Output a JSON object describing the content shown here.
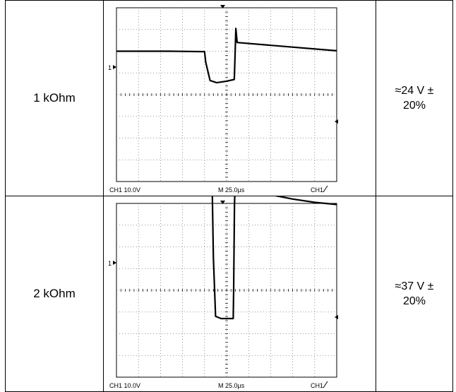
{
  "rows": [
    {
      "resistance": "1 kOhm",
      "value_line1": "≈24 V ±",
      "value_line2": "20%",
      "scope": {
        "channel_scale": "CH1  10.0V",
        "timebase": "M 25.0µs",
        "trigger": "CH1",
        "ch_marker": "1",
        "waveform": [
          [
            0,
            2.0
          ],
          [
            2.4,
            2.0
          ],
          [
            4.0,
            1.98
          ],
          [
            4.05,
            1.5
          ],
          [
            4.25,
            0.65
          ],
          [
            4.55,
            0.55
          ],
          [
            5.0,
            0.62
          ],
          [
            5.35,
            0.7
          ],
          [
            5.38,
            1.7
          ],
          [
            5.42,
            3.05
          ],
          [
            5.48,
            2.4
          ],
          [
            10.0,
            2.02
          ]
        ]
      }
    },
    {
      "resistance": "2 kOhm",
      "value_line1": "≈37 V ±",
      "value_line2": "20%",
      "scope": {
        "channel_scale": "CH1  10.0V",
        "timebase": "M 25.0µs",
        "trigger": "CH1",
        "ch_marker": "1",
        "waveform": [
          [
            0,
            4.5
          ],
          [
            4.35,
            4.55
          ],
          [
            4.4,
            1.5
          ],
          [
            4.5,
            -1.2
          ],
          [
            4.75,
            -1.3
          ],
          [
            5.3,
            -1.3
          ],
          [
            5.32,
            0.0
          ],
          [
            5.36,
            4.0
          ],
          [
            5.4,
            5.1
          ],
          [
            6.0,
            4.8
          ],
          [
            7.0,
            4.4
          ],
          [
            8.0,
            4.2
          ],
          [
            9.0,
            4.05
          ],
          [
            10.0,
            3.95
          ]
        ]
      }
    }
  ]
}
